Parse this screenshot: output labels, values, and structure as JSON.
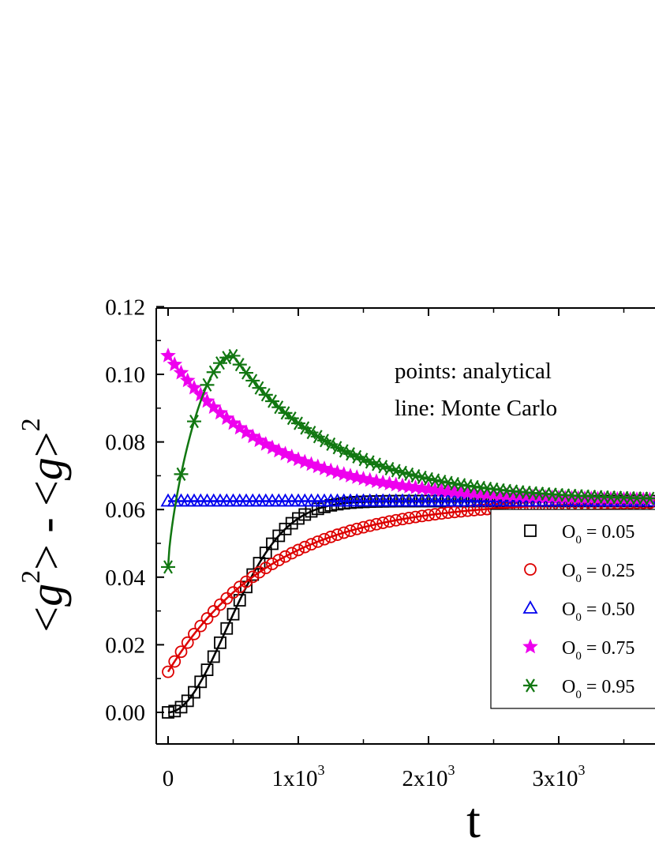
{
  "chart_data": {
    "type": "scatter",
    "xlabel": "t",
    "ylabel": "<g^2> - <g>^2",
    "ylabel_parts": {
      "left_bracket": "<",
      "g1": "g",
      "sup1": "2",
      "right_bracket1": ">",
      "minus": " - ",
      "left_bracket2": "<",
      "g2": "g",
      "right_bracket2": ">",
      "sup2": "2"
    },
    "xlim": [
      -100,
      3700
    ],
    "ylim": [
      -0.01,
      0.12
    ],
    "y_ticks": [
      {
        "value": 0.0,
        "label": "0.00"
      },
      {
        "value": 0.02,
        "label": "0.02"
      },
      {
        "value": 0.04,
        "label": "0.04"
      },
      {
        "value": 0.06,
        "label": "0.06"
      },
      {
        "value": 0.08,
        "label": "0.08"
      },
      {
        "value": 0.1,
        "label": "0.10"
      },
      {
        "value": 0.12,
        "label": "0.12"
      }
    ],
    "x_ticks": [
      {
        "value": 0,
        "label": "0",
        "sup": ""
      },
      {
        "value": 1000,
        "label": "1x10",
        "sup": "3"
      },
      {
        "value": 2000,
        "label": "2x10",
        "sup": "3"
      },
      {
        "value": 3000,
        "label": "3x10",
        "sup": "3"
      }
    ],
    "annotations": [
      "points: analytical",
      "line: Monte Carlo"
    ],
    "legend_position": "right",
    "equilibrium_value": 0.0625,
    "series": [
      {
        "name": "O₀ = 0.05",
        "label_main": "O",
        "label_sub": "0",
        "label_rest": " = 0.05",
        "marker": "square",
        "color": "#000000",
        "line_color": "#000000",
        "initial": 0.0,
        "curve": "sigmoid",
        "rate": 0.0018,
        "scale": 600
      },
      {
        "name": "O₀ = 0.25",
        "label_main": "O",
        "label_sub": "0",
        "label_rest": " = 0.25",
        "marker": "circle",
        "color": "#dd0000",
        "line_color": "#dd0000",
        "initial": 0.012,
        "curve": "exponential",
        "tau": 800
      },
      {
        "name": "O₀ = 0.50",
        "label_main": "O",
        "label_sub": "0",
        "label_rest": " = 0.50",
        "marker": "triangle",
        "color": "#0000ee",
        "line_color": "#0000ee",
        "initial": 0.0625,
        "curve": "constant"
      },
      {
        "name": "O₀ = 0.75",
        "label_main": "O",
        "label_sub": "0",
        "label_rest": " = 0.75",
        "marker": "star",
        "color": "#ee00ee",
        "line_color": "#ee00ee",
        "initial": 0.1055,
        "curve": "exponential",
        "tau": 800
      },
      {
        "name": "O₀ = 0.95",
        "label_main": "O",
        "label_sub": "0",
        "label_rest": " = 0.95",
        "marker": "asterisk",
        "color": "#117711",
        "line_color": "#117711",
        "initial": 0.043,
        "curve": "peak",
        "peak_t": 500,
        "peak_value": 0.1055,
        "tau": 800
      }
    ],
    "sample_step": 50,
    "t_max": 3700
  }
}
